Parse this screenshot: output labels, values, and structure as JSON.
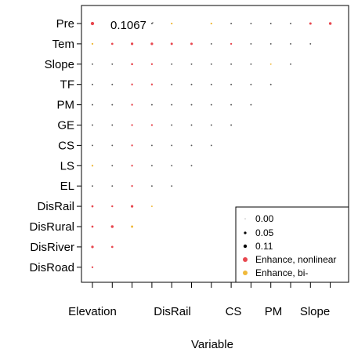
{
  "chart_data": {
    "type": "scatter",
    "title": "",
    "xlabel": "Variable",
    "ylabel": "",
    "annotation": "0.1067",
    "x_tick_labels": [
      "Elevation",
      "DisRail",
      "CS",
      "PM",
      "Slope"
    ],
    "x_tick_count": 13,
    "y_categories": [
      "Pre",
      "Tem",
      "Slope",
      "TF",
      "PM",
      "GE",
      "CS",
      "LS",
      "EL",
      "DisRail",
      "DisRural",
      "DisRiver",
      "DisRoad"
    ],
    "legend": {
      "placement": "bottom-right",
      "size_entries": [
        {
          "label": "0.00",
          "value": 0.0
        },
        {
          "label": "0.05",
          "value": 0.05
        },
        {
          "label": "0.11",
          "value": 0.11
        }
      ],
      "type_entries": [
        {
          "label": "Enhance, nonlinear",
          "color": "#e8474f"
        },
        {
          "label": "Enhance, bi-",
          "color": "#f0b93a"
        }
      ]
    },
    "colors": {
      "nonlinear": "#e8474f",
      "bivariate": "#f0b93a",
      "neutral": "#555555"
    },
    "points": [
      {
        "x": 1,
        "y": "Pre",
        "v": 0.1067,
        "t": "nonlinear"
      },
      {
        "x": 4,
        "y": "Pre",
        "v": 0.01,
        "t": "neutral"
      },
      {
        "x": 5,
        "y": "Pre",
        "v": 0.02,
        "t": "bivariate"
      },
      {
        "x": 7,
        "y": "Pre",
        "v": 0.02,
        "t": "bivariate"
      },
      {
        "x": 8,
        "y": "Pre",
        "v": 0.01,
        "t": "neutral"
      },
      {
        "x": 9,
        "y": "Pre",
        "v": 0.01,
        "t": "neutral"
      },
      {
        "x": 10,
        "y": "Pre",
        "v": 0.01,
        "t": "neutral"
      },
      {
        "x": 11,
        "y": "Pre",
        "v": 0.01,
        "t": "neutral"
      },
      {
        "x": 12,
        "y": "Pre",
        "v": 0.04,
        "t": "nonlinear"
      },
      {
        "x": 13,
        "y": "Pre",
        "v": 0.06,
        "t": "nonlinear"
      },
      {
        "x": 1,
        "y": "Tem",
        "v": 0.02,
        "t": "bivariate"
      },
      {
        "x": 2,
        "y": "Tem",
        "v": 0.03,
        "t": "nonlinear"
      },
      {
        "x": 3,
        "y": "Tem",
        "v": 0.05,
        "t": "nonlinear"
      },
      {
        "x": 4,
        "y": "Tem",
        "v": 0.05,
        "t": "nonlinear"
      },
      {
        "x": 5,
        "y": "Tem",
        "v": 0.04,
        "t": "nonlinear"
      },
      {
        "x": 6,
        "y": "Tem",
        "v": 0.04,
        "t": "nonlinear"
      },
      {
        "x": 7,
        "y": "Tem",
        "v": 0.01,
        "t": "neutral"
      },
      {
        "x": 8,
        "y": "Tem",
        "v": 0.02,
        "t": "nonlinear"
      },
      {
        "x": 9,
        "y": "Tem",
        "v": 0.01,
        "t": "neutral"
      },
      {
        "x": 10,
        "y": "Tem",
        "v": 0.01,
        "t": "neutral"
      },
      {
        "x": 11,
        "y": "Tem",
        "v": 0.01,
        "t": "neutral"
      },
      {
        "x": 12,
        "y": "Tem",
        "v": 0.01,
        "t": "neutral"
      },
      {
        "x": 1,
        "y": "Slope",
        "v": 0.01,
        "t": "neutral"
      },
      {
        "x": 2,
        "y": "Slope",
        "v": 0.01,
        "t": "neutral"
      },
      {
        "x": 3,
        "y": "Slope",
        "v": 0.03,
        "t": "nonlinear"
      },
      {
        "x": 4,
        "y": "Slope",
        "v": 0.02,
        "t": "nonlinear"
      },
      {
        "x": 5,
        "y": "Slope",
        "v": 0.01,
        "t": "neutral"
      },
      {
        "x": 6,
        "y": "Slope",
        "v": 0.01,
        "t": "neutral"
      },
      {
        "x": 7,
        "y": "Slope",
        "v": 0.01,
        "t": "neutral"
      },
      {
        "x": 8,
        "y": "Slope",
        "v": 0.01,
        "t": "neutral"
      },
      {
        "x": 9,
        "y": "Slope",
        "v": 0.01,
        "t": "neutral"
      },
      {
        "x": 10,
        "y": "Slope",
        "v": 0.01,
        "t": "bivariate"
      },
      {
        "x": 11,
        "y": "Slope",
        "v": 0.01,
        "t": "neutral"
      },
      {
        "x": 1,
        "y": "TF",
        "v": 0.01,
        "t": "neutral"
      },
      {
        "x": 2,
        "y": "TF",
        "v": 0.01,
        "t": "neutral"
      },
      {
        "x": 3,
        "y": "TF",
        "v": 0.02,
        "t": "nonlinear"
      },
      {
        "x": 4,
        "y": "TF",
        "v": 0.02,
        "t": "nonlinear"
      },
      {
        "x": 5,
        "y": "TF",
        "v": 0.01,
        "t": "neutral"
      },
      {
        "x": 6,
        "y": "TF",
        "v": 0.01,
        "t": "neutral"
      },
      {
        "x": 7,
        "y": "TF",
        "v": 0.01,
        "t": "neutral"
      },
      {
        "x": 8,
        "y": "TF",
        "v": 0.01,
        "t": "neutral"
      },
      {
        "x": 9,
        "y": "TF",
        "v": 0.01,
        "t": "neutral"
      },
      {
        "x": 10,
        "y": "TF",
        "v": 0.01,
        "t": "neutral"
      },
      {
        "x": 1,
        "y": "PM",
        "v": 0.01,
        "t": "neutral"
      },
      {
        "x": 2,
        "y": "PM",
        "v": 0.01,
        "t": "neutral"
      },
      {
        "x": 3,
        "y": "PM",
        "v": 0.02,
        "t": "nonlinear"
      },
      {
        "x": 4,
        "y": "PM",
        "v": 0.01,
        "t": "neutral"
      },
      {
        "x": 5,
        "y": "PM",
        "v": 0.01,
        "t": "neutral"
      },
      {
        "x": 6,
        "y": "PM",
        "v": 0.01,
        "t": "neutral"
      },
      {
        "x": 7,
        "y": "PM",
        "v": 0.01,
        "t": "neutral"
      },
      {
        "x": 8,
        "y": "PM",
        "v": 0.01,
        "t": "neutral"
      },
      {
        "x": 9,
        "y": "PM",
        "v": 0.01,
        "t": "neutral"
      },
      {
        "x": 1,
        "y": "GE",
        "v": 0.01,
        "t": "neutral"
      },
      {
        "x": 2,
        "y": "GE",
        "v": 0.01,
        "t": "neutral"
      },
      {
        "x": 3,
        "y": "GE",
        "v": 0.02,
        "t": "nonlinear"
      },
      {
        "x": 4,
        "y": "GE",
        "v": 0.02,
        "t": "nonlinear"
      },
      {
        "x": 5,
        "y": "GE",
        "v": 0.01,
        "t": "neutral"
      },
      {
        "x": 6,
        "y": "GE",
        "v": 0.01,
        "t": "neutral"
      },
      {
        "x": 7,
        "y": "GE",
        "v": 0.01,
        "t": "neutral"
      },
      {
        "x": 8,
        "y": "GE",
        "v": 0.01,
        "t": "neutral"
      },
      {
        "x": 1,
        "y": "CS",
        "v": 0.01,
        "t": "neutral"
      },
      {
        "x": 2,
        "y": "CS",
        "v": 0.01,
        "t": "neutral"
      },
      {
        "x": 3,
        "y": "CS",
        "v": 0.02,
        "t": "nonlinear"
      },
      {
        "x": 4,
        "y": "CS",
        "v": 0.01,
        "t": "neutral"
      },
      {
        "x": 5,
        "y": "CS",
        "v": 0.01,
        "t": "neutral"
      },
      {
        "x": 6,
        "y": "CS",
        "v": 0.01,
        "t": "neutral"
      },
      {
        "x": 7,
        "y": "CS",
        "v": 0.01,
        "t": "neutral"
      },
      {
        "x": 1,
        "y": "LS",
        "v": 0.02,
        "t": "bivariate"
      },
      {
        "x": 2,
        "y": "LS",
        "v": 0.01,
        "t": "neutral"
      },
      {
        "x": 3,
        "y": "LS",
        "v": 0.02,
        "t": "nonlinear"
      },
      {
        "x": 4,
        "y": "LS",
        "v": 0.01,
        "t": "neutral"
      },
      {
        "x": 5,
        "y": "LS",
        "v": 0.01,
        "t": "neutral"
      },
      {
        "x": 6,
        "y": "LS",
        "v": 0.01,
        "t": "neutral"
      },
      {
        "x": 1,
        "y": "EL",
        "v": 0.01,
        "t": "neutral"
      },
      {
        "x": 2,
        "y": "EL",
        "v": 0.01,
        "t": "neutral"
      },
      {
        "x": 3,
        "y": "EL",
        "v": 0.02,
        "t": "nonlinear"
      },
      {
        "x": 4,
        "y": "EL",
        "v": 0.01,
        "t": "neutral"
      },
      {
        "x": 5,
        "y": "EL",
        "v": 0.01,
        "t": "neutral"
      },
      {
        "x": 1,
        "y": "DisRail",
        "v": 0.03,
        "t": "nonlinear"
      },
      {
        "x": 2,
        "y": "DisRail",
        "v": 0.02,
        "t": "nonlinear"
      },
      {
        "x": 3,
        "y": "DisRail",
        "v": 0.05,
        "t": "nonlinear"
      },
      {
        "x": 4,
        "y": "DisRail",
        "v": 0.01,
        "t": "bivariate"
      },
      {
        "x": 1,
        "y": "DisRural",
        "v": 0.03,
        "t": "nonlinear"
      },
      {
        "x": 2,
        "y": "DisRural",
        "v": 0.06,
        "t": "nonlinear"
      },
      {
        "x": 3,
        "y": "DisRural",
        "v": 0.04,
        "t": "bivariate"
      },
      {
        "x": 1,
        "y": "DisRiver",
        "v": 0.05,
        "t": "nonlinear"
      },
      {
        "x": 2,
        "y": "DisRiver",
        "v": 0.03,
        "t": "nonlinear"
      },
      {
        "x": 1,
        "y": "DisRoad",
        "v": 0.02,
        "t": "nonlinear"
      }
    ]
  }
}
